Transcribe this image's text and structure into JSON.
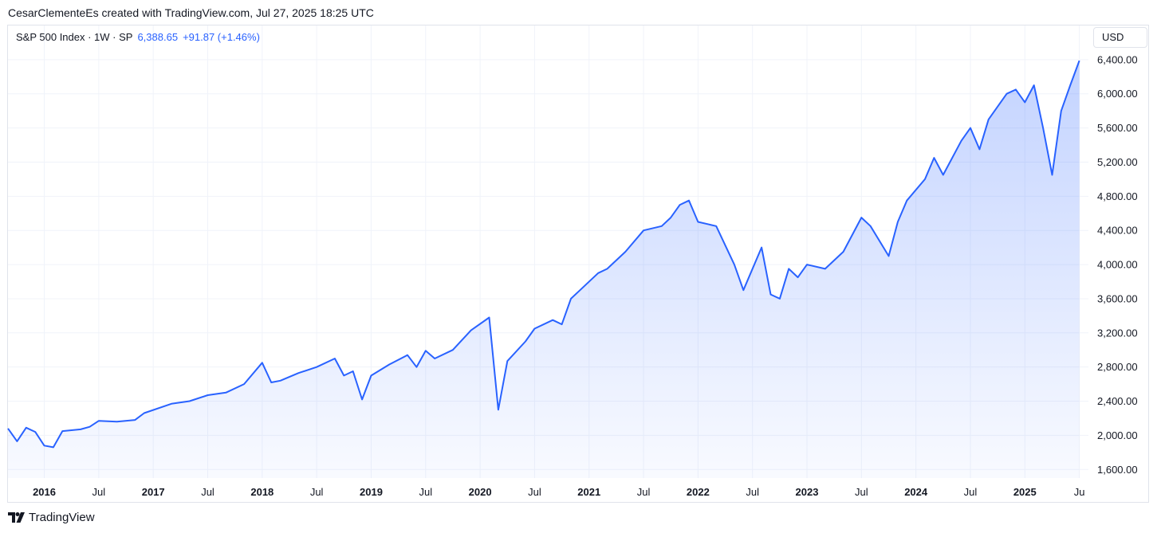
{
  "credit": "CesarClementeEs created with TradingView.com, Jul 27, 2025 18:25 UTC",
  "legend": {
    "symbol": "S&P 500 Index · 1W · SP",
    "price": "6,388.65",
    "change": "+91.87 (+1.46%)"
  },
  "currency_button": "USD",
  "brand": "TradingView",
  "colors": {
    "line": "#2962ff",
    "grid": "#f0f3fa",
    "text": "#131722"
  },
  "chart_data": {
    "type": "area",
    "series": [
      {
        "x": [
          "2015-09",
          "2015-10",
          "2015-11",
          "2015-12",
          "2016-01",
          "2016-02",
          "2016-03",
          "2016-05",
          "2016-06",
          "2016-07",
          "2016-09",
          "2016-11",
          "2016-12",
          "2017-03",
          "2017-05",
          "2017-07",
          "2017-09",
          "2017-11",
          "2018-01",
          "2018-02",
          "2018-03",
          "2018-05",
          "2018-07",
          "2018-09",
          "2018-10",
          "2018-11",
          "2018-12",
          "2019-01",
          "2019-03",
          "2019-05",
          "2019-06",
          "2019-07",
          "2019-08",
          "2019-10",
          "2019-12",
          "2020-02",
          "2020-03",
          "2020-04",
          "2020-06",
          "2020-07",
          "2020-09",
          "2020-10",
          "2020-11",
          "2020-12",
          "2021-02",
          "2021-03",
          "2021-05",
          "2021-07",
          "2021-09",
          "2021-10",
          "2021-11",
          "2021-12",
          "2022-01",
          "2022-03",
          "2022-05",
          "2022-06",
          "2022-08",
          "2022-09",
          "2022-10",
          "2022-11",
          "2022-12",
          "2023-01",
          "2023-03",
          "2023-05",
          "2023-07",
          "2023-08",
          "2023-10",
          "2023-11",
          "2023-12",
          "2024-02",
          "2024-03",
          "2024-04",
          "2024-06",
          "2024-07",
          "2024-08",
          "2024-09",
          "2024-10",
          "2024-11",
          "2024-12",
          "2025-01",
          "2025-02",
          "2025-03",
          "2025-04",
          "2025-05",
          "2025-06",
          "2025-07"
        ],
        "values": [
          2080,
          1930,
          2090,
          2040,
          1880,
          1860,
          2050,
          2070,
          2100,
          2170,
          2160,
          2180,
          2260,
          2370,
          2400,
          2470,
          2500,
          2600,
          2850,
          2620,
          2640,
          2730,
          2800,
          2900,
          2700,
          2750,
          2420,
          2700,
          2830,
          2940,
          2800,
          2990,
          2900,
          3000,
          3230,
          3380,
          2300,
          2870,
          3100,
          3250,
          3350,
          3300,
          3600,
          3700,
          3900,
          3950,
          4150,
          4400,
          4450,
          4550,
          4700,
          4750,
          4500,
          4450,
          4000,
          3700,
          4200,
          3650,
          3600,
          3950,
          3850,
          4000,
          3950,
          4150,
          4550,
          4450,
          4100,
          4500,
          4750,
          5000,
          5250,
          5050,
          5450,
          5600,
          5350,
          5700,
          5850,
          6000,
          6050,
          5900,
          6100,
          5600,
          5050,
          5800,
          6100,
          6388
        ]
      }
    ],
    "ylim": [
      1500,
      6520
    ],
    "y_ticks": [
      "1,600.00",
      "2,000.00",
      "2,400.00",
      "2,800.00",
      "3,200.00",
      "3,600.00",
      "4,000.00",
      "4,400.00",
      "4,800.00",
      "5,200.00",
      "5,600.00",
      "6,000.00",
      "6,400.00"
    ],
    "y_tick_values": [
      1600,
      2000,
      2400,
      2800,
      3200,
      3600,
      4000,
      4400,
      4800,
      5200,
      5600,
      6000,
      6400
    ],
    "x_ticks": [
      {
        "label": "2016",
        "date": "2016-01",
        "year": true
      },
      {
        "label": "Jul",
        "date": "2016-07",
        "year": false
      },
      {
        "label": "2017",
        "date": "2017-01",
        "year": true
      },
      {
        "label": "Jul",
        "date": "2017-07",
        "year": false
      },
      {
        "label": "2018",
        "date": "2018-01",
        "year": true
      },
      {
        "label": "Jul",
        "date": "2018-07",
        "year": false
      },
      {
        "label": "2019",
        "date": "2019-01",
        "year": true
      },
      {
        "label": "Jul",
        "date": "2019-07",
        "year": false
      },
      {
        "label": "2020",
        "date": "2020-01",
        "year": true
      },
      {
        "label": "Jul",
        "date": "2020-07",
        "year": false
      },
      {
        "label": "2021",
        "date": "2021-01",
        "year": true
      },
      {
        "label": "Jul",
        "date": "2021-07",
        "year": false
      },
      {
        "label": "2022",
        "date": "2022-01",
        "year": true
      },
      {
        "label": "Jul",
        "date": "2022-07",
        "year": false
      },
      {
        "label": "2023",
        "date": "2023-01",
        "year": true
      },
      {
        "label": "Jul",
        "date": "2023-07",
        "year": false
      },
      {
        "label": "2024",
        "date": "2024-01",
        "year": true
      },
      {
        "label": "Jul",
        "date": "2024-07",
        "year": false
      },
      {
        "label": "2025",
        "date": "2025-01",
        "year": true
      },
      {
        "label": "Ju",
        "date": "2025-07",
        "year": false
      }
    ],
    "grid": true
  }
}
